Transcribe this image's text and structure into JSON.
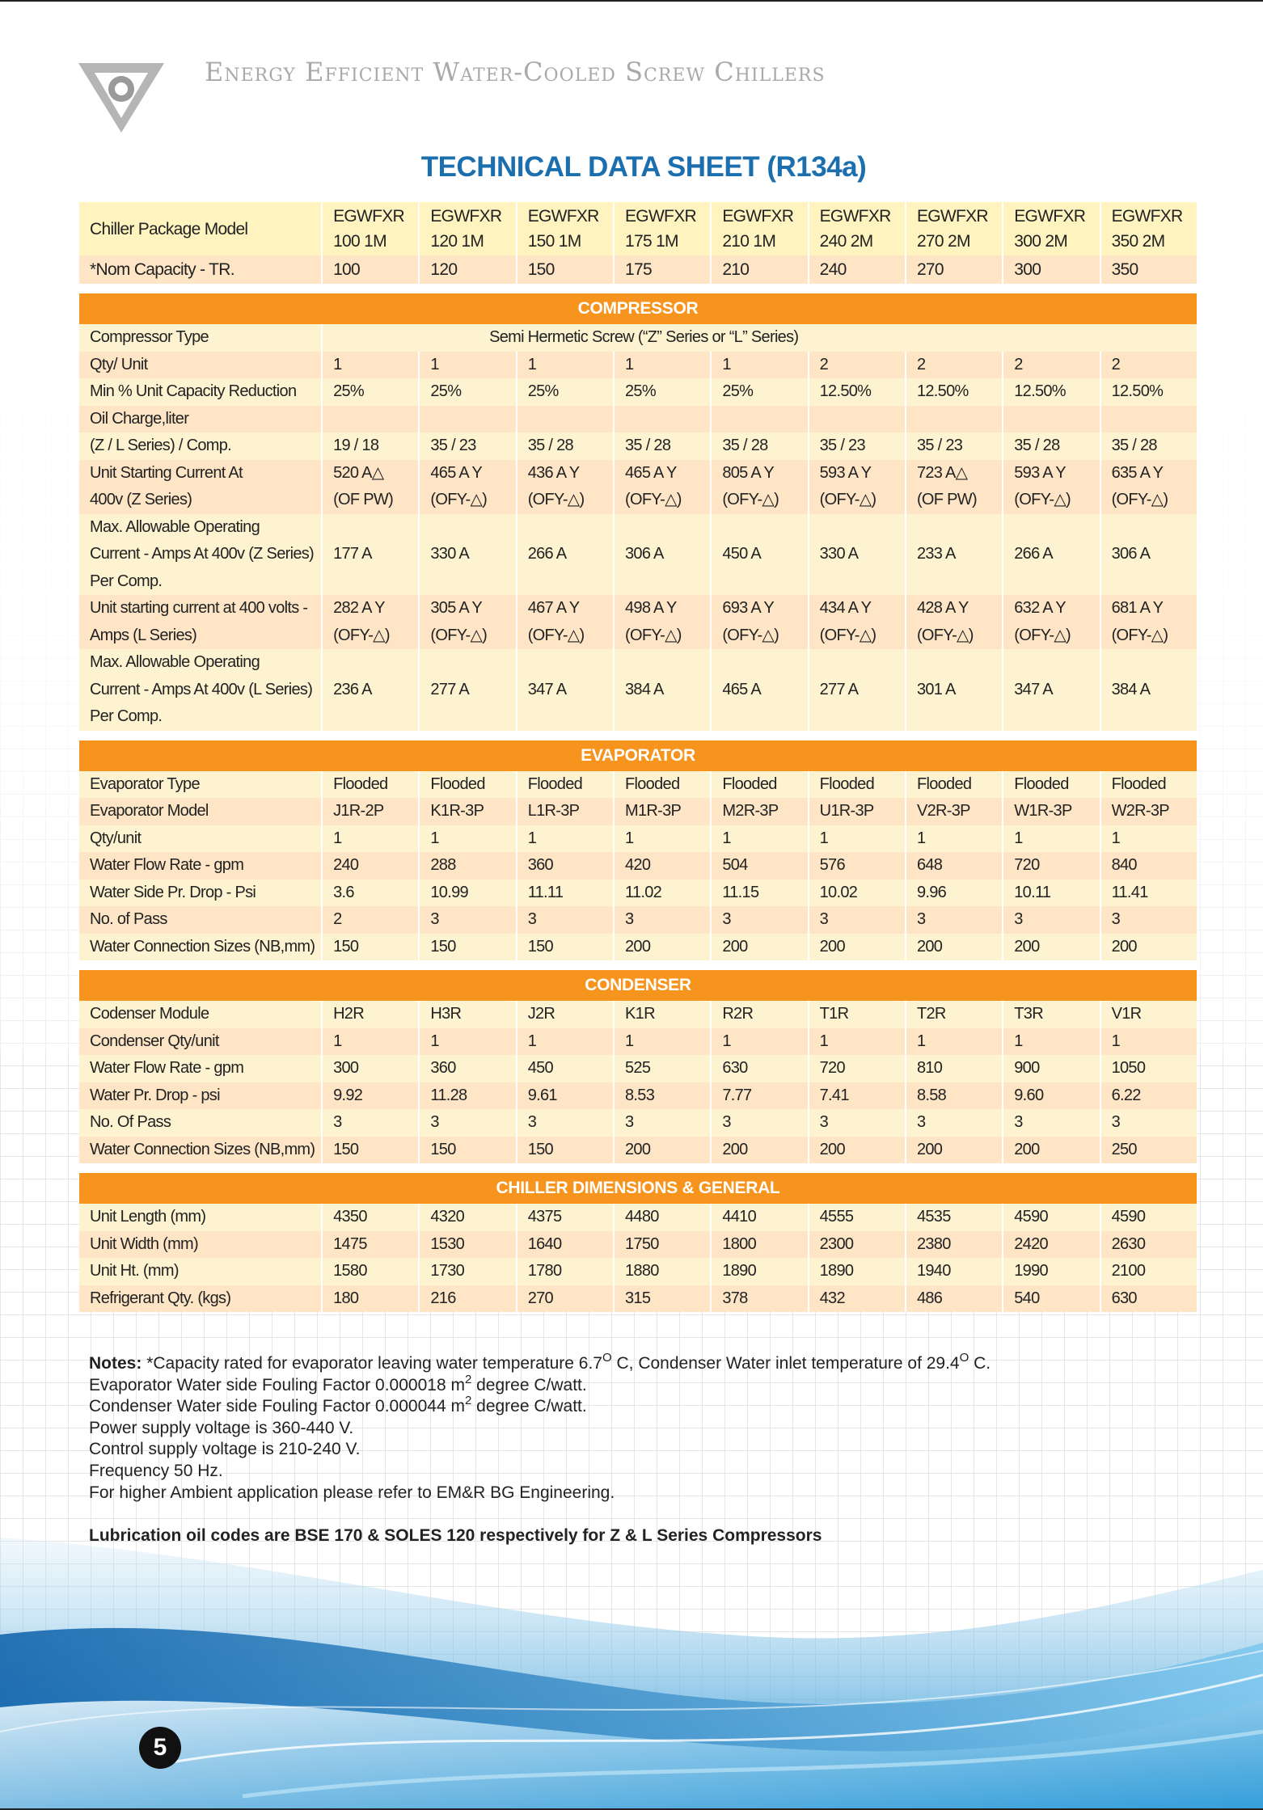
{
  "header": {
    "title": "Energy Efficient Water-Cooled Screw Chillers"
  },
  "title": "TECHNICAL DATA SHEET (R134a)",
  "table": {
    "header": {
      "label": "Chiller Package Model",
      "models": [
        [
          "EGWFXR",
          "100 1M"
        ],
        [
          "EGWFXR",
          "120 1M"
        ],
        [
          "EGWFXR",
          "150 1M"
        ],
        [
          "EGWFXR",
          "175 1M"
        ],
        [
          "EGWFXR",
          "210 1M"
        ],
        [
          "EGWFXR",
          "240 2M"
        ],
        [
          "EGWFXR",
          "270 2M"
        ],
        [
          "EGWFXR",
          "300 2M"
        ],
        [
          "EGWFXR",
          "350 2M"
        ]
      ]
    },
    "capacity": {
      "label": "*Nom Capacity - TR.",
      "values": [
        "100",
        "120",
        "150",
        "175",
        "210",
        "240",
        "270",
        "300",
        "350"
      ]
    },
    "sections": [
      {
        "title": "COMPRESSOR",
        "rows": [
          {
            "label": "Compressor Type",
            "span": "Semi Hermetic Screw (“Z” Series or “L” Series)"
          },
          {
            "label": "Qty/ Unit",
            "values": [
              "1",
              "1",
              "1",
              "1",
              "1",
              "2",
              "2",
              "2",
              "2"
            ]
          },
          {
            "label": "Min % Unit Capacity Reduction",
            "values": [
              "25%",
              "25%",
              "25%",
              "25%",
              "25%",
              "12.50%",
              "12.50%",
              "12.50%",
              "12.50%"
            ]
          },
          {
            "label": "Oil Charge,liter"
          },
          {
            "label": "(Z / L Series) / Comp.",
            "values": [
              "19 / 18",
              "35 / 23",
              "35 / 28",
              "35 / 28",
              "35 / 28",
              "35 / 23",
              "35 / 23",
              "35 / 28",
              "35 / 28"
            ]
          },
          {
            "label": [
              "Unit Starting Current At",
              "400v (Z Series)"
            ],
            "values": [
              [
                "520 A△",
                "(OF PW)"
              ],
              [
                "465 A Y",
                "(OFY-△)"
              ],
              [
                "436 A Y",
                "(OFY-△)"
              ],
              [
                "465 A Y",
                "(OFY-△)"
              ],
              [
                "805 A Y",
                "(OFY-△)"
              ],
              [
                "593 A Y",
                "(OFY-△)"
              ],
              [
                "723 A△",
                "(OF PW)"
              ],
              [
                "593 A Y",
                "(OFY-△)"
              ],
              [
                "635 A Y",
                "(OFY-△)"
              ]
            ]
          },
          {
            "label": [
              "Max. Allowable Operating",
              "Current - Amps At 400v (Z Series)",
              "Per Comp."
            ],
            "values": [
              "177 A",
              "330 A",
              "266 A",
              "306 A",
              "450 A",
              "330 A",
              "233 A",
              "266 A",
              "306 A"
            ]
          },
          {
            "label": [
              "Unit starting current at 400 volts -",
              "Amps (L Series)"
            ],
            "values": [
              [
                "282 A Y",
                "(OFY-△)"
              ],
              [
                "305 A Y",
                "(OFY-△)"
              ],
              [
                "467 A Y",
                "(OFY-△)"
              ],
              [
                "498 A Y",
                "(OFY-△)"
              ],
              [
                "693 A Y",
                "(OFY-△)"
              ],
              [
                "434 A Y",
                "(OFY-△)"
              ],
              [
                "428 A Y",
                "(OFY-△)"
              ],
              [
                "632 A Y",
                "(OFY-△)"
              ],
              [
                "681 A Y",
                "(OFY-△)"
              ]
            ]
          },
          {
            "label": [
              "Max. Allowable Operating",
              "Current - Amps At 400v (L Series)",
              "Per Comp."
            ],
            "values": [
              "236 A",
              "277 A",
              "347 A",
              "384 A",
              "465 A",
              "277 A",
              "301 A",
              "347 A",
              "384 A"
            ]
          }
        ]
      },
      {
        "title": "EVAPORATOR",
        "rows": [
          {
            "label": "Evaporator Type",
            "values": [
              "Flooded",
              "Flooded",
              "Flooded",
              "Flooded",
              "Flooded",
              "Flooded",
              "Flooded",
              "Flooded",
              "Flooded"
            ]
          },
          {
            "label": "Evaporator Model",
            "values": [
              "J1R-2P",
              "K1R-3P",
              "L1R-3P",
              "M1R-3P",
              "M2R-3P",
              "U1R-3P",
              "V2R-3P",
              "W1R-3P",
              "W2R-3P"
            ]
          },
          {
            "label": "Qty/unit",
            "values": [
              "1",
              "1",
              "1",
              "1",
              "1",
              "1",
              "1",
              "1",
              "1"
            ]
          },
          {
            "label": "Water Flow Rate - gpm",
            "values": [
              "240",
              "288",
              "360",
              "420",
              "504",
              "576",
              "648",
              "720",
              "840"
            ]
          },
          {
            "label": "Water Side Pr. Drop - Psi",
            "values": [
              "3.6",
              "10.99",
              "11.11",
              "11.02",
              "11.15",
              "10.02",
              "9.96",
              "10.11",
              "11.41"
            ]
          },
          {
            "label": "No.  of Pass",
            "values": [
              "2",
              "3",
              "3",
              "3",
              "3",
              "3",
              "3",
              "3",
              "3"
            ]
          },
          {
            "label": "Water Connection Sizes (NB,mm)",
            "values": [
              "150",
              "150",
              "150",
              "200",
              "200",
              "200",
              "200",
              "200",
              "200"
            ]
          }
        ]
      },
      {
        "title": "CONDENSER",
        "rows": [
          {
            "label": "Codenser Module",
            "values": [
              "H2R",
              "H3R",
              "J2R",
              "K1R",
              "R2R",
              "T1R",
              "T2R",
              "T3R",
              "V1R"
            ]
          },
          {
            "label": "Condenser Qty/unit",
            "values": [
              "1",
              "1",
              "1",
              "1",
              "1",
              "1",
              "1",
              "1",
              "1"
            ]
          },
          {
            "label": "Water Flow Rate - gpm",
            "values": [
              "300",
              "360",
              "450",
              "525",
              "630",
              "720",
              "810",
              "900",
              "1050"
            ]
          },
          {
            "label": "Water Pr. Drop - psi",
            "values": [
              "9.92",
              "11.28",
              "9.61",
              "8.53",
              "7.77",
              "7.41",
              "8.58",
              "9.60",
              "6.22"
            ]
          },
          {
            "label": "No.  Of Pass",
            "values": [
              "3",
              "3",
              "3",
              "3",
              "3",
              "3",
              "3",
              "3",
              "3"
            ]
          },
          {
            "label": "Water Connection Sizes (NB,mm)",
            "values": [
              "150",
              "150",
              "150",
              "200",
              "200",
              "200",
              "200",
              "200",
              "250"
            ]
          }
        ]
      },
      {
        "title": "CHILLER DIMENSIONS & GENERAL",
        "rows": [
          {
            "label": "Unit Length (mm)",
            "values": [
              "4350",
              "4320",
              "4375",
              "4480",
              "4410",
              "4555",
              "4535",
              "4590",
              "4590"
            ]
          },
          {
            "label": "Unit Width (mm)",
            "values": [
              "1475",
              "1530",
              "1640",
              "1750",
              "1800",
              "2300",
              "2380",
              "2420",
              "2630"
            ]
          },
          {
            "label": "Unit Ht. (mm)",
            "values": [
              "1580",
              "1730",
              "1780",
              "1880",
              "1890",
              "1890",
              "1940",
              "1990",
              "2100"
            ]
          },
          {
            "label": "Refrigerant Qty. (kgs)",
            "values": [
              "180",
              "216",
              "270",
              "315",
              "378",
              "432",
              "486",
              "540",
              "630"
            ]
          }
        ]
      }
    ]
  },
  "notes": {
    "label": "Notes:",
    "lines": [
      [
        "*Capacity rated for evaporator leaving water temperature 6.7",
        {
          "sup": "O"
        },
        " C, Condenser Water inlet temperature of 29.4",
        {
          "sup": "O"
        },
        " C."
      ],
      [
        "Evaporator Water side Fouling Factor 0.000018 m",
        {
          "sup": "2"
        },
        " degree C/watt."
      ],
      [
        "Condenser Water side Fouling Factor 0.000044 m",
        {
          "sup": "2"
        },
        " degree C/watt."
      ],
      [
        "Power supply voltage is 360-440 V."
      ],
      [
        "Control supply voltage is 210-240 V."
      ],
      [
        "Frequency 50 Hz."
      ],
      [
        "For higher Ambient application please refer to EM&R BG Engineering."
      ]
    ],
    "lubrication": "Lubrication oil codes are BSE 170 & SOLES 120 respectively for Z & L Series Compressors"
  },
  "page_number": "5"
}
